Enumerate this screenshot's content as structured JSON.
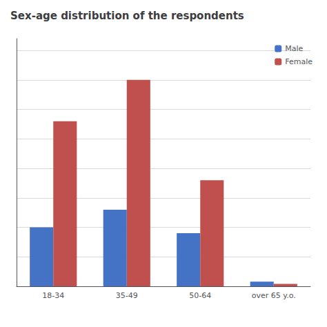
{
  "chart_data": {
    "type": "bar",
    "title": "Sex-age distribution of the respondents",
    "categories": [
      "18-34",
      "35-49",
      "50-64",
      "over 65 y.o."
    ],
    "series": [
      {
        "name": "Male",
        "color": "#4472C4",
        "values": [
          10,
          13,
          9,
          0.8
        ]
      },
      {
        "name": "Female",
        "color": "#C0504D",
        "values": [
          28,
          35,
          18,
          0.4
        ]
      }
    ],
    "ylim": [
      0,
      42
    ],
    "yticks": [
      0,
      5,
      10,
      15,
      20,
      25,
      30,
      35,
      40
    ],
    "grid": true,
    "legend": "upper right",
    "tick_labels": "x"
  }
}
